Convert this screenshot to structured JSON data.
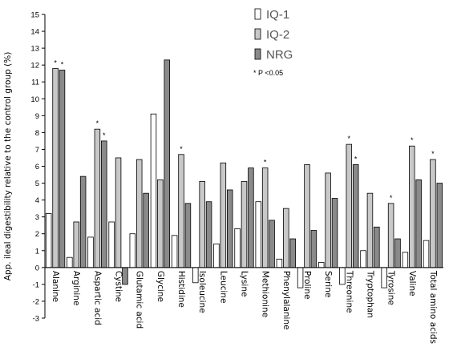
{
  "chart_data": {
    "type": "bar",
    "ylabel": "App. ileal digestibility relative to the control group (%)",
    "ylim": [
      -3,
      15
    ],
    "yticks": [
      -3,
      -2,
      -1,
      0,
      1,
      2,
      3,
      4,
      5,
      6,
      7,
      8,
      9,
      10,
      11,
      12,
      13,
      14,
      15
    ],
    "categories": [
      "Alanine",
      "Arginine",
      "Aspartic acid",
      "Cystine",
      "Glutamic acid",
      "Glycine",
      "Histidine",
      "Isoleucine",
      "Leucine",
      "Lysine",
      "Methionine",
      "Phenylalanine",
      "Proline",
      "Serine",
      "Threonine",
      "Tryptophan",
      "Tyrosine",
      "Valine",
      "Total amino acids"
    ],
    "series": [
      {
        "name": "IQ-1",
        "color": "#ffffff",
        "values": [
          3.2,
          0.6,
          1.8,
          2.7,
          2.0,
          9.1,
          1.9,
          -0.9,
          1.4,
          2.3,
          3.9,
          0.5,
          -1.2,
          0.3,
          -1.0,
          1.0,
          -1.2,
          0.9,
          1.6
        ]
      },
      {
        "name": "IQ-2",
        "color": "#c8c8c8",
        "values": [
          11.8,
          2.7,
          8.2,
          6.5,
          6.4,
          5.2,
          6.7,
          5.1,
          6.2,
          5.1,
          5.9,
          3.5,
          6.1,
          5.6,
          7.3,
          4.4,
          3.8,
          7.2,
          6.4
        ]
      },
      {
        "name": "NRG",
        "color": "#8a8a8a",
        "values": [
          11.7,
          5.4,
          7.5,
          -1.0,
          4.4,
          12.3,
          3.8,
          3.9,
          4.6,
          5.9,
          2.8,
          1.7,
          2.2,
          4.1,
          6.1,
          2.4,
          1.7,
          5.2,
          5.0
        ]
      }
    ],
    "significance": [
      {
        "category": "Alanine",
        "series": "IQ-2",
        "mark": "*"
      },
      {
        "category": "Alanine",
        "series": "NRG",
        "mark": "*"
      },
      {
        "category": "Aspartic acid",
        "series": "IQ-2",
        "mark": "*"
      },
      {
        "category": "Aspartic acid",
        "series": "NRG",
        "mark": "*"
      },
      {
        "category": "Histidine",
        "series": "IQ-2",
        "mark": "*"
      },
      {
        "category": "Methionine",
        "series": "IQ-2",
        "mark": "*"
      },
      {
        "category": "Threonine",
        "series": "IQ-2",
        "mark": "*"
      },
      {
        "category": "Threonine",
        "series": "NRG",
        "mark": "*"
      },
      {
        "category": "Tyrosine",
        "series": "IQ-2",
        "mark": "*"
      },
      {
        "category": "Valine",
        "series": "IQ-2",
        "mark": "*"
      },
      {
        "category": "Total amino acids",
        "series": "IQ-2",
        "mark": "*"
      }
    ],
    "legend": {
      "position": "top-right",
      "entries": [
        "IQ-1",
        "IQ-2",
        "NRG"
      ],
      "note": "* P <0.05"
    }
  }
}
